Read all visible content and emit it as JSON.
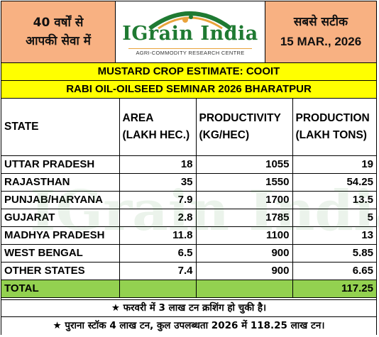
{
  "header": {
    "left_line1": "40 वर्षों से",
    "left_line2": "आपकी सेवा में",
    "brand_name": "IGrain India",
    "brand_tagline": "AGRI-COMMODITY RESEARCH CENTRE",
    "right_line1": "सबसे सटीक",
    "date": "15 MAR., 2026"
  },
  "titles": {
    "main": "MUSTARD CROP ESTIMATE: COOIT",
    "sub": "RABI OIL-OILSEED SEMINAR 2026 BHARATPUR"
  },
  "table": {
    "columns": [
      {
        "line1": "STATE",
        "line2": ""
      },
      {
        "line1": "AREA",
        "line2": "(LAKH HEC.)"
      },
      {
        "line1": "PRODUCTIVITY",
        "line2": "(KG/HEC)"
      },
      {
        "line1": "PRODUCTION",
        "line2": "(LAKH TONS)"
      }
    ],
    "rows": [
      {
        "state": "UTTAR PRADESH",
        "area": "18",
        "productivity": "1055",
        "production": "19"
      },
      {
        "state": "RAJASTHAN",
        "area": "35",
        "productivity": "1550",
        "production": "54.25"
      },
      {
        "state": "PUNJAB/HARYANA",
        "area": "7.9",
        "productivity": "1700",
        "production": "13.5"
      },
      {
        "state": "GUJARAT",
        "area": "2.8",
        "productivity": "1785",
        "production": "5"
      },
      {
        "state": "MADHYA PRADESH",
        "area": "11.8",
        "productivity": "1100",
        "production": "13"
      },
      {
        "state": "WEST BENGAL",
        "area": "6.5",
        "productivity": "900",
        "production": "5.85"
      },
      {
        "state": "OTHER STATES",
        "area": "7.4",
        "productivity": "900",
        "production": "6.65"
      }
    ],
    "total": {
      "label": "TOTAL",
      "production": "117.25"
    }
  },
  "notes": {
    "note1": "★ फरवरी में 3 लाख टन क्रशिंग हो चुकी है।",
    "note2": "★ पुराना स्टॉक 4 लाख टन, कुल उपलब्धता 2026 में 118.25 लाख टन।"
  },
  "colors": {
    "header_bg": "#f8b182",
    "title_bg": "#ffff00",
    "total_bg": "#93d150",
    "brand_green": "#1f7a32"
  }
}
